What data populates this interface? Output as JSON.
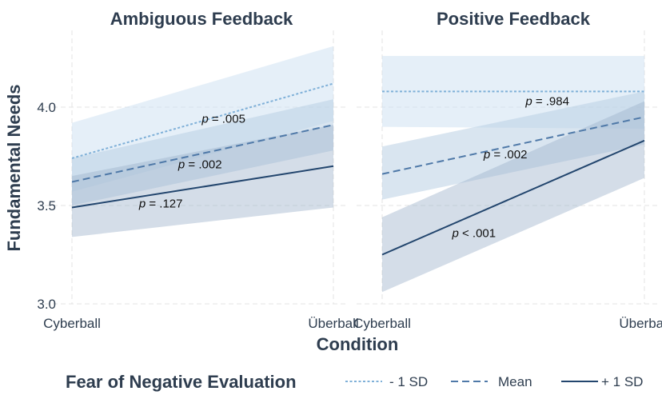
{
  "chart_data": {
    "type": "line",
    "xlabel": "Condition",
    "ylabel": "Fundamental Needs",
    "ylim": [
      3.0,
      4.35
    ],
    "yticks": [
      "3.0",
      "3.5",
      "4.0"
    ],
    "categories": [
      "Cyberball",
      "Überball"
    ],
    "legend": {
      "title": "Fear of Negative Evaluation",
      "placement": "bottom",
      "entries": [
        {
          "key": "low",
          "label": "- 1 SD"
        },
        {
          "key": "mean",
          "label": "Mean"
        },
        {
          "key": "high",
          "label": "+ 1 SD"
        }
      ]
    },
    "colors": {
      "low": "#7fb0d8",
      "mean": "#4f79a8",
      "high": "#23466e",
      "band_low": "#cfe2f3",
      "band_mean": "#b9cfe4",
      "band_high": "#9fb4cc",
      "text": "#2e3d4f"
    },
    "panels": [
      {
        "title": "Ambiguous Feedback",
        "series": [
          {
            "key": "low",
            "values": [
              3.74,
              4.12
            ],
            "lower": [
              3.57,
              3.93
            ],
            "upper": [
              3.92,
              4.31
            ]
          },
          {
            "key": "mean",
            "values": [
              3.62,
              3.91
            ],
            "lower": [
              3.5,
              3.78
            ],
            "upper": [
              3.74,
              4.04
            ]
          },
          {
            "key": "high",
            "values": [
              3.49,
              3.7
            ],
            "lower": [
              3.34,
              3.49
            ],
            "upper": [
              3.65,
              3.91
            ]
          }
        ],
        "annotations": [
          {
            "x": 1.58,
            "y": 3.92,
            "p": "p",
            "rest": " = .005"
          },
          {
            "x": 1.49,
            "y": 3.69,
            "p": "p",
            "rest": " = .002"
          },
          {
            "x": 1.34,
            "y": 3.49,
            "p": "p",
            "rest": " = .127"
          }
        ]
      },
      {
        "title": "Positive Feedback",
        "series": [
          {
            "key": "low",
            "values": [
              4.08,
              4.08
            ],
            "lower": [
              3.9,
              3.89
            ],
            "upper": [
              4.26,
              4.26
            ]
          },
          {
            "key": "mean",
            "values": [
              3.66,
              3.95
            ],
            "lower": [
              3.53,
              3.81
            ],
            "upper": [
              3.8,
              4.08
            ]
          },
          {
            "key": "high",
            "values": [
              3.25,
              3.83
            ],
            "lower": [
              3.06,
              3.64
            ],
            "upper": [
              3.44,
              4.03
            ]
          }
        ],
        "annotations": [
          {
            "x": 1.63,
            "y": 4.01,
            "p": "p",
            "rest": " = .984"
          },
          {
            "x": 1.47,
            "y": 3.74,
            "p": "p",
            "rest": " = .002"
          },
          {
            "x": 1.35,
            "y": 3.34,
            "p": "p",
            "rest": " < .001"
          }
        ]
      }
    ]
  }
}
